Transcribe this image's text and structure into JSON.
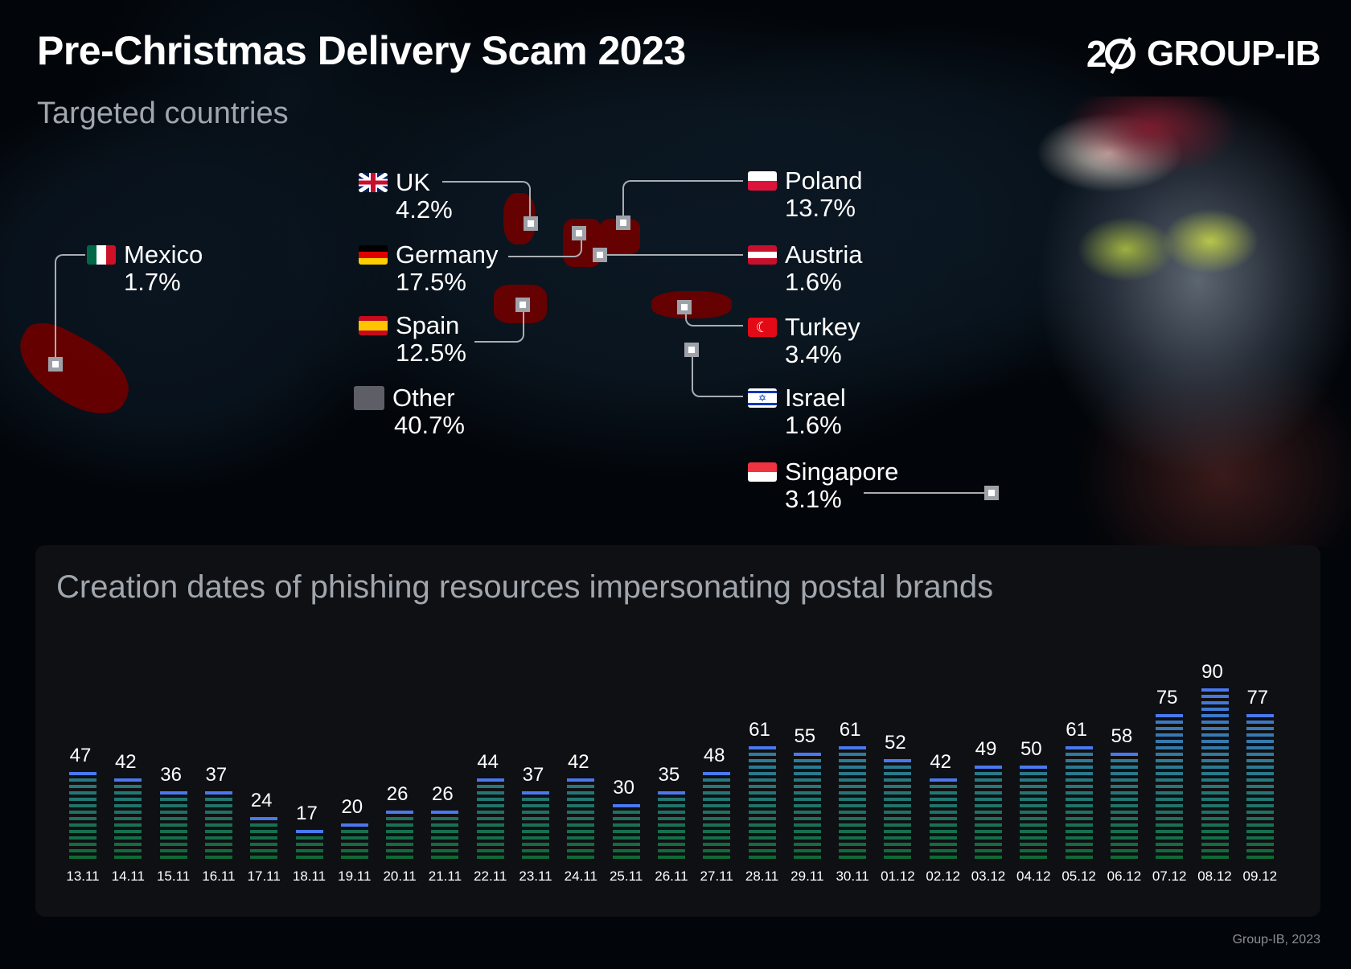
{
  "header": {
    "title": "Pre-Christmas Delivery Scam 2023",
    "subtitle": "Targeted countries",
    "logo": {
      "number": "2",
      "text": "GROUP-IB"
    }
  },
  "map": {
    "countries": [
      {
        "name": "Mexico",
        "percent": "1.7%",
        "flag": "mexico-flag"
      },
      {
        "name": "UK",
        "percent": "4.2%",
        "flag": "uk-flag"
      },
      {
        "name": "Germany",
        "percent": "17.5%",
        "flag": "germany-flag"
      },
      {
        "name": "Spain",
        "percent": "12.5%",
        "flag": "spain-flag"
      },
      {
        "name": "Other",
        "percent": "40.7%",
        "flag": "grey-swatch"
      },
      {
        "name": "Poland",
        "percent": "13.7%",
        "flag": "poland-flag"
      },
      {
        "name": "Austria",
        "percent": "1.6%",
        "flag": "austria-flag"
      },
      {
        "name": "Turkey",
        "percent": "3.4%",
        "flag": "turkey-flag"
      },
      {
        "name": "Israel",
        "percent": "1.6%",
        "flag": "israel-flag"
      },
      {
        "name": "Singapore",
        "percent": "3.1%",
        "flag": "singapore-flag"
      }
    ],
    "highlight_color": "#6a0000",
    "other_color": "#5e5e66"
  },
  "panel": {
    "title": "Creation dates of phishing resources impersonating postal brands"
  },
  "footer": {
    "credit": "Group-IB, 2023"
  },
  "chart_data": [
    {
      "type": "pie",
      "title": "Targeted countries",
      "categories": [
        "Germany",
        "Poland",
        "Spain",
        "UK",
        "Turkey",
        "Singapore",
        "Mexico",
        "Austria",
        "Israel",
        "Other"
      ],
      "values": [
        17.5,
        13.7,
        12.5,
        4.2,
        3.4,
        3.1,
        1.7,
        1.6,
        1.6,
        40.7
      ],
      "unit": "%"
    },
    {
      "type": "bar",
      "title": "Creation dates of phishing resources impersonating postal brands",
      "xlabel": "",
      "ylabel": "",
      "categories": [
        "13.11",
        "14.11",
        "15.11",
        "16.11",
        "17.11",
        "18.11",
        "19.11",
        "20.11",
        "21.11",
        "22.11",
        "23.11",
        "24.11",
        "25.11",
        "26.11",
        "27.11",
        "28.11",
        "29.11",
        "30.11",
        "01.12",
        "02.12",
        "03.12",
        "04.12",
        "05.12",
        "06.12",
        "07.12",
        "08.12",
        "09.12"
      ],
      "values": [
        47,
        42,
        36,
        37,
        24,
        17,
        20,
        26,
        26,
        44,
        37,
        42,
        30,
        35,
        48,
        61,
        55,
        61,
        52,
        42,
        49,
        50,
        61,
        58,
        75,
        90,
        77
      ],
      "ylim": [
        0,
        90
      ],
      "grid": false,
      "colors": {
        "top": "#4a78f0",
        "middle": "#2b7a8c",
        "bottom": "#0f6a35"
      }
    }
  ]
}
